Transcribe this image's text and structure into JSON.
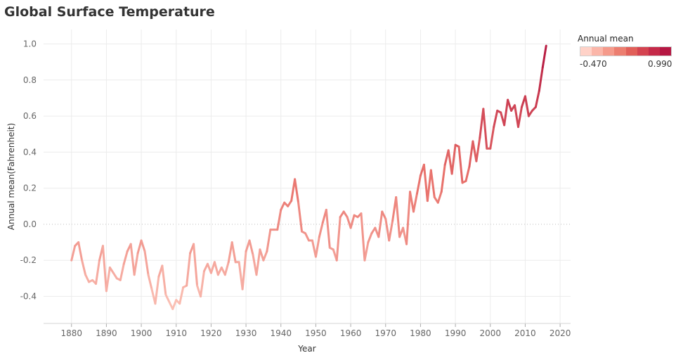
{
  "title": "Global Surface Temperature",
  "legend": {
    "title": "Annual mean",
    "min_label": "-0.470",
    "max_label": "0.990",
    "colors": [
      "#ffd2c8",
      "#fbb6a9",
      "#f59a8b",
      "#ec7e70",
      "#e15f59",
      "#d44350",
      "#c52a49",
      "#b51743"
    ]
  },
  "chart_data": {
    "type": "line",
    "title": "Global Surface Temperature",
    "xlabel": "Year",
    "ylabel": "Annual mean(Fahrenheit)",
    "xlim": [
      1872,
      2023
    ],
    "ylim": [
      -0.55,
      1.08
    ],
    "x_ticks": [
      1880,
      1890,
      1900,
      1910,
      1920,
      1930,
      1940,
      1950,
      1960,
      1970,
      1980,
      1990,
      2000,
      2010,
      2020
    ],
    "y_ticks": [
      -0.4,
      -0.2,
      0.0,
      0.2,
      0.4,
      0.6,
      0.8,
      1.0
    ],
    "y_tick_labels": [
      "-0.4",
      "-0.2",
      "0.0",
      "0.2",
      "0.4",
      "0.6",
      "0.8",
      "1.0"
    ],
    "zero_line": true,
    "grid": true,
    "color_min": -0.47,
    "color_max": 0.99,
    "series": [
      {
        "x": [
          1880,
          1881,
          1882,
          1883,
          1884,
          1885,
          1886,
          1887,
          1888,
          1889,
          1890,
          1891,
          1892,
          1893,
          1894,
          1895,
          1896,
          1897,
          1898,
          1899,
          1900,
          1901,
          1902,
          1903,
          1904,
          1905,
          1906,
          1907,
          1908,
          1909,
          1910,
          1911,
          1912,
          1913,
          1914,
          1915,
          1916,
          1917,
          1918,
          1919,
          1920,
          1921,
          1922,
          1923,
          1924,
          1925,
          1926,
          1927,
          1928,
          1929,
          1930,
          1931,
          1932,
          1933,
          1934,
          1935,
          1936,
          1937,
          1938,
          1939,
          1940,
          1941,
          1942,
          1943,
          1944,
          1945,
          1946,
          1947,
          1948,
          1949,
          1950,
          1951,
          1952,
          1953,
          1954,
          1955,
          1956,
          1957,
          1958,
          1959,
          1960,
          1961,
          1962,
          1963,
          1964,
          1965,
          1966,
          1967,
          1968,
          1969,
          1970,
          1971,
          1972,
          1973,
          1974,
          1975,
          1976,
          1977,
          1978,
          1979,
          1980,
          1981,
          1982,
          1983,
          1984,
          1985,
          1986,
          1987,
          1988,
          1989,
          1990,
          1991,
          1992,
          1993,
          1994,
          1995,
          1996,
          1997,
          1998,
          1999,
          2000,
          2001,
          2002,
          2003,
          2004,
          2005,
          2006,
          2007,
          2008,
          2009,
          2010,
          2011,
          2012,
          2013,
          2014,
          2015,
          2016
        ],
        "values": [
          -0.2,
          -0.12,
          -0.1,
          -0.2,
          -0.28,
          -0.32,
          -0.31,
          -0.33,
          -0.2,
          -0.12,
          -0.37,
          -0.24,
          -0.27,
          -0.3,
          -0.31,
          -0.22,
          -0.15,
          -0.11,
          -0.28,
          -0.16,
          -0.09,
          -0.15,
          -0.28,
          -0.36,
          -0.44,
          -0.29,
          -0.23,
          -0.39,
          -0.43,
          -0.47,
          -0.42,
          -0.44,
          -0.35,
          -0.34,
          -0.16,
          -0.11,
          -0.34,
          -0.4,
          -0.26,
          -0.22,
          -0.27,
          -0.21,
          -0.28,
          -0.24,
          -0.28,
          -0.21,
          -0.1,
          -0.21,
          -0.21,
          -0.36,
          -0.15,
          -0.09,
          -0.17,
          -0.28,
          -0.14,
          -0.2,
          -0.15,
          -0.03,
          -0.03,
          -0.03,
          0.08,
          0.12,
          0.1,
          0.13,
          0.25,
          0.12,
          -0.04,
          -0.05,
          -0.09,
          -0.09,
          -0.18,
          -0.07,
          0.01,
          0.08,
          -0.13,
          -0.14,
          -0.2,
          0.04,
          0.07,
          0.04,
          -0.02,
          0.05,
          0.04,
          0.06,
          -0.2,
          -0.1,
          -0.05,
          -0.02,
          -0.07,
          0.07,
          0.03,
          -0.09,
          0.02,
          0.15,
          -0.07,
          -0.02,
          -0.11,
          0.18,
          0.07,
          0.17,
          0.27,
          0.33,
          0.13,
          0.3,
          0.15,
          0.12,
          0.18,
          0.33,
          0.41,
          0.28,
          0.44,
          0.43,
          0.23,
          0.24,
          0.32,
          0.46,
          0.35,
          0.48,
          0.64,
          0.42,
          0.42,
          0.54,
          0.63,
          0.62,
          0.55,
          0.69,
          0.63,
          0.66,
          0.54,
          0.65,
          0.71,
          0.6,
          0.63,
          0.65,
          0.74,
          0.87,
          0.99
        ]
      }
    ]
  }
}
